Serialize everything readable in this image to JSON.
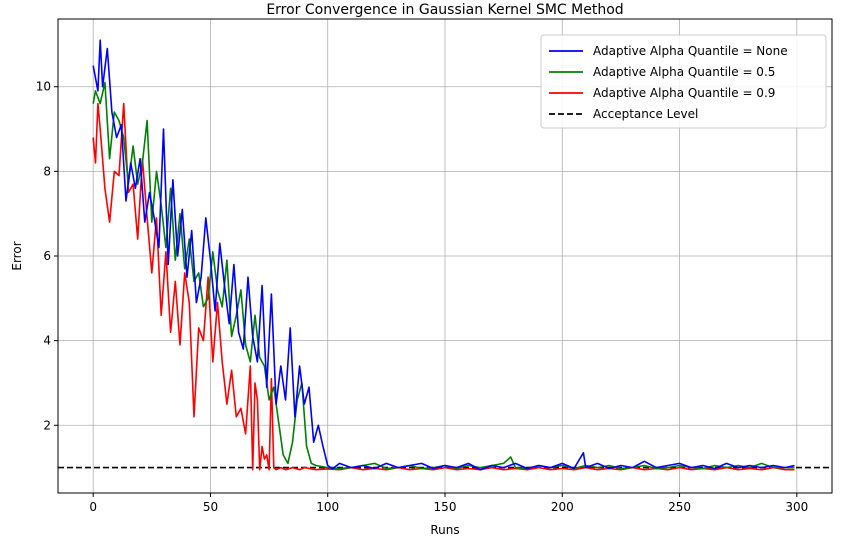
{
  "chart_data": {
    "type": "line",
    "title": "Error Convergence in Gaussian Kernel SMC Method",
    "xlabel": "Runs",
    "ylabel": "Error",
    "xlim": [
      -15,
      315
    ],
    "ylim": [
      0.4,
      11.6
    ],
    "xticks": [
      0,
      50,
      100,
      150,
      200,
      250,
      300
    ],
    "yticks": [
      2,
      4,
      6,
      8,
      10
    ],
    "grid": true,
    "legend_position": "top-right",
    "reference_line": {
      "name": "Acceptance Level",
      "y": 1.0,
      "color": "#000000",
      "style": "dashed"
    },
    "series": [
      {
        "name": "Adaptive Alpha Quantile = None",
        "color": "#0000ff",
        "x": [
          0,
          2,
          3,
          4,
          6,
          8,
          10,
          12,
          14,
          16,
          18,
          20,
          22,
          24,
          26,
          28,
          30,
          32,
          34,
          36,
          38,
          40,
          42,
          44,
          46,
          48,
          50,
          52,
          54,
          56,
          58,
          60,
          62,
          64,
          66,
          68,
          70,
          72,
          74,
          76,
          78,
          80,
          82,
          84,
          86,
          88,
          90,
          92,
          94,
          96,
          98,
          100,
          102,
          105,
          110,
          115,
          120,
          125,
          130,
          135,
          140,
          145,
          150,
          155,
          160,
          165,
          170,
          175,
          180,
          185,
          190,
          195,
          200,
          205,
          209,
          210,
          215,
          220,
          225,
          230,
          235,
          240,
          245,
          250,
          255,
          260,
          265,
          270,
          275,
          280,
          285,
          290,
          295,
          299
        ],
        "values": [
          10.5,
          9.9,
          11.1,
          10.0,
          10.9,
          9.4,
          8.8,
          9.1,
          7.3,
          8.2,
          7.6,
          8.3,
          6.8,
          7.5,
          6.9,
          6.2,
          9.0,
          5.8,
          7.8,
          6.0,
          7.1,
          5.5,
          6.6,
          4.9,
          5.5,
          6.9,
          5.9,
          4.7,
          6.3,
          5.3,
          4.4,
          5.8,
          4.2,
          3.8,
          5.5,
          4.1,
          3.5,
          5.3,
          2.9,
          5.1,
          2.5,
          3.4,
          2.6,
          4.3,
          2.2,
          3.4,
          2.5,
          2.9,
          1.6,
          2.0,
          1.5,
          1.05,
          0.97,
          1.1,
          1.0,
          1.05,
          0.98,
          1.1,
          1.0,
          1.05,
          1.1,
          0.98,
          1.05,
          1.0,
          1.1,
          0.95,
          1.05,
          1.0,
          1.1,
          0.98,
          1.05,
          1.0,
          1.1,
          0.98,
          1.35,
          1.0,
          1.1,
          0.98,
          1.05,
          1.0,
          1.15,
          1.0,
          1.05,
          1.1,
          1.0,
          1.05,
          0.98,
          1.1,
          1.0,
          1.05,
          1.0,
          1.05,
          1.0,
          1.05
        ]
      },
      {
        "name": "Adaptive Alpha Quantile = 0.5",
        "color": "#008000",
        "x": [
          0,
          1,
          3,
          5,
          7,
          9,
          11,
          13,
          15,
          17,
          19,
          21,
          23,
          25,
          27,
          29,
          31,
          33,
          35,
          37,
          39,
          41,
          43,
          45,
          47,
          49,
          51,
          53,
          55,
          57,
          59,
          61,
          63,
          65,
          67,
          69,
          71,
          73,
          75,
          77,
          79,
          81,
          83,
          85,
          87,
          89,
          91,
          93,
          95,
          100,
          105,
          110,
          115,
          120,
          125,
          130,
          135,
          140,
          145,
          150,
          155,
          160,
          165,
          170,
          175,
          178,
          180,
          185,
          190,
          195,
          200,
          205,
          210,
          215,
          220,
          225,
          230,
          235,
          240,
          245,
          250,
          255,
          260,
          265,
          270,
          275,
          280,
          285,
          290,
          295,
          299
        ],
        "values": [
          9.6,
          9.9,
          9.6,
          10.1,
          8.3,
          9.4,
          9.2,
          8.8,
          7.7,
          8.6,
          7.7,
          8.2,
          9.2,
          6.8,
          8.0,
          7.2,
          6.2,
          7.6,
          5.9,
          7.0,
          5.7,
          6.4,
          5.4,
          5.6,
          4.8,
          5.0,
          6.1,
          5.2,
          4.8,
          5.9,
          4.1,
          4.6,
          5.2,
          3.9,
          3.5,
          4.6,
          3.6,
          3.4,
          2.6,
          2.9,
          2.1,
          1.3,
          1.1,
          1.6,
          2.6,
          3.0,
          1.5,
          1.1,
          1.05,
          1.0,
          0.98,
          1.0,
          1.05,
          1.1,
          0.98,
          1.0,
          1.05,
          0.98,
          1.0,
          1.05,
          0.98,
          1.05,
          1.0,
          1.05,
          1.1,
          1.25,
          1.0,
          0.98,
          1.05,
          1.0,
          1.05,
          0.98,
          1.05,
          1.0,
          1.05,
          0.98,
          1.0,
          1.05,
          0.98,
          1.0,
          1.05,
          1.0,
          0.98,
          1.05,
          1.0,
          1.05,
          1.0,
          1.1,
          1.0,
          1.0,
          1.0
        ]
      },
      {
        "name": "Adaptive Alpha Quantile = 0.9",
        "color": "#ff0000",
        "x": [
          0,
          1,
          2,
          3,
          5,
          7,
          9,
          11,
          13,
          15,
          17,
          19,
          21,
          23,
          25,
          27,
          29,
          31,
          33,
          35,
          37,
          39,
          41,
          43,
          45,
          47,
          49,
          51,
          53,
          55,
          57,
          59,
          61,
          63,
          65,
          67,
          68,
          69,
          70,
          71,
          72,
          73,
          74,
          75,
          76,
          77,
          78,
          80,
          82,
          85,
          88,
          90,
          95,
          100,
          105,
          110,
          115,
          120,
          125,
          130,
          135,
          140,
          145,
          150,
          155,
          160,
          165,
          170,
          175,
          180,
          185,
          190,
          195,
          200,
          205,
          210,
          215,
          220,
          225,
          230,
          235,
          240,
          245,
          250,
          255,
          260,
          265,
          270,
          275,
          280,
          285,
          290,
          295,
          299
        ],
        "values": [
          8.8,
          8.2,
          9.6,
          9.0,
          7.6,
          6.8,
          8.0,
          7.9,
          9.6,
          7.5,
          7.7,
          6.4,
          8.3,
          6.9,
          5.6,
          6.9,
          4.6,
          6.1,
          4.2,
          5.4,
          3.9,
          5.6,
          4.9,
          2.2,
          4.3,
          4.0,
          5.5,
          3.5,
          4.9,
          3.5,
          2.5,
          3.3,
          2.2,
          2.4,
          1.8,
          3.4,
          0.95,
          3.0,
          2.6,
          0.95,
          1.5,
          1.2,
          1.3,
          0.95,
          3.1,
          1.0,
          0.95,
          1.0,
          0.95,
          1.0,
          0.95,
          1.0,
          0.95,
          0.97,
          0.95,
          1.0,
          0.95,
          0.98,
          0.95,
          1.0,
          0.95,
          0.98,
          0.95,
          1.0,
          0.95,
          0.98,
          0.95,
          1.0,
          0.95,
          0.98,
          0.95,
          1.0,
          0.95,
          0.98,
          0.95,
          1.0,
          0.95,
          0.98,
          0.95,
          1.0,
          0.95,
          0.98,
          0.95,
          1.0,
          0.95,
          0.98,
          0.95,
          1.0,
          0.95,
          0.98,
          0.95,
          1.0,
          0.95,
          0.95
        ]
      }
    ]
  }
}
